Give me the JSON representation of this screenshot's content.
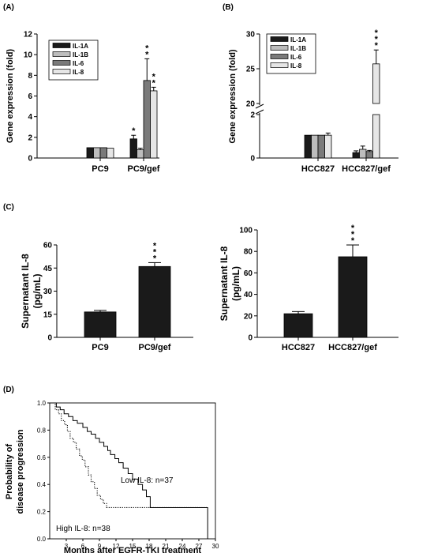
{
  "panel_labels": {
    "a": "(A)",
    "b": "(B)",
    "c": "(C)",
    "d": "(D)"
  },
  "series_colors": {
    "IL-1A": "#1a1a1a",
    "IL-1B": "#bdbdbd",
    "IL-6": "#7a7a7a",
    "IL-8": "#e6e6e6"
  },
  "chart_data": [
    {
      "id": "A",
      "type": "bar",
      "categories": [
        "PC9",
        "PC9/gef"
      ],
      "ylabel": "Gene expression (fold)",
      "ylim": [
        0,
        12
      ],
      "yticks": [
        0,
        2,
        4,
        6,
        8,
        10,
        12
      ],
      "legend_position": "top-left",
      "series": [
        {
          "name": "IL-1A",
          "values": [
            1.0,
            1.85
          ],
          "errors": [
            0,
            0.35
          ],
          "sig": [
            "",
            "*"
          ]
        },
        {
          "name": "IL-1B",
          "values": [
            1.0,
            0.8
          ],
          "errors": [
            0,
            0.15
          ],
          "sig": [
            "",
            ""
          ]
        },
        {
          "name": "IL-6",
          "values": [
            1.0,
            7.5
          ],
          "errors": [
            0,
            2.1
          ],
          "sig": [
            "",
            "**"
          ]
        },
        {
          "name": "IL-8",
          "values": [
            0.95,
            6.5
          ],
          "errors": [
            0,
            0.35
          ],
          "sig": [
            "",
            "**"
          ]
        }
      ]
    },
    {
      "id": "B",
      "type": "bar",
      "categories": [
        "HCC827",
        "HCC827/gef"
      ],
      "ylabel": "Gene expression (fold)",
      "axis_break": true,
      "lower_ylim": [
        0,
        2
      ],
      "lower_yticks": [
        0,
        2
      ],
      "upper_ylim": [
        20,
        30
      ],
      "upper_yticks": [
        20,
        25,
        30
      ],
      "legend_position": "top-left",
      "series": [
        {
          "name": "IL-1A",
          "values": [
            1.05,
            0.25
          ],
          "errors": [
            0,
            0.08
          ],
          "sig": [
            "",
            ""
          ]
        },
        {
          "name": "IL-1B",
          "values": [
            1.05,
            0.4
          ],
          "errors": [
            0,
            0.15
          ],
          "sig": [
            "",
            ""
          ]
        },
        {
          "name": "IL-6",
          "values": [
            1.05,
            0.3
          ],
          "errors": [
            0,
            0.05
          ],
          "sig": [
            "",
            ""
          ]
        },
        {
          "name": "IL-8",
          "values": [
            1.05,
            25.7
          ],
          "errors": [
            0.1,
            2.0
          ],
          "sig": [
            "",
            "***"
          ]
        }
      ]
    },
    {
      "id": "C1",
      "type": "bar",
      "categories": [
        "PC9",
        "PC9/gef"
      ],
      "ylabel": "Supernatant IL-8",
      "ylabel2": "(pg/mL)",
      "ylim": [
        0,
        60
      ],
      "yticks": [
        0,
        15,
        30,
        45,
        60
      ],
      "values": [
        16.5,
        46
      ],
      "errors": [
        1.0,
        2.5
      ],
      "sig": [
        "",
        "***"
      ]
    },
    {
      "id": "C2",
      "type": "bar",
      "categories": [
        "HCC827",
        "HCC827/gef"
      ],
      "ylabel": "Supernatant IL-8",
      "ylabel2": "(pg/mL)",
      "ylim": [
        0,
        100
      ],
      "yticks": [
        0,
        20,
        40,
        60,
        80,
        100
      ],
      "values": [
        22,
        75
      ],
      "errors": [
        2.0,
        11.0
      ],
      "sig": [
        "",
        "***"
      ]
    },
    {
      "id": "D",
      "type": "line",
      "xlabel": "Months after EGFR-TKI treatment",
      "ylabel": "Probability of",
      "ylabel2": "disease progression",
      "xlim": [
        0,
        30
      ],
      "ylim": [
        0,
        1.0
      ],
      "xticks": [
        3,
        6,
        9,
        12,
        15,
        18,
        21,
        24,
        27,
        30
      ],
      "yticks": [
        "0.0",
        "0.2",
        "0.4",
        "0.6",
        "0.8",
        "1.0"
      ],
      "series": [
        {
          "name": "Low IL-8: n=37",
          "style": "solid",
          "x": [
            0,
            1.2,
            1.9,
            2.6,
            3.4,
            4.2,
            5.0,
            6.0,
            6.8,
            7.5,
            8.3,
            9.0,
            9.8,
            10.5,
            11.0,
            11.8,
            12.5,
            13.3,
            14.2,
            15.0,
            16.0,
            16.8,
            17.5,
            18.2,
            28.6,
            28.6
          ],
          "y": [
            1.0,
            0.97,
            0.95,
            0.92,
            0.9,
            0.87,
            0.85,
            0.82,
            0.79,
            0.77,
            0.74,
            0.71,
            0.68,
            0.65,
            0.62,
            0.59,
            0.56,
            0.52,
            0.48,
            0.44,
            0.4,
            0.36,
            0.31,
            0.23,
            0.23,
            0.0
          ]
        },
        {
          "name": "High IL-8: n=38",
          "style": "dotted",
          "x": [
            0,
            1.0,
            1.6,
            2.1,
            2.7,
            3.2,
            3.7,
            4.3,
            4.8,
            5.4,
            5.9,
            6.4,
            7.0,
            7.5,
            8.1,
            8.6,
            9.2,
            9.7,
            10.3,
            28.6
          ],
          "y": [
            1.0,
            0.95,
            0.92,
            0.87,
            0.84,
            0.79,
            0.74,
            0.71,
            0.66,
            0.61,
            0.58,
            0.53,
            0.47,
            0.42,
            0.37,
            0.32,
            0.29,
            0.26,
            0.23,
            0.23
          ]
        }
      ]
    }
  ]
}
